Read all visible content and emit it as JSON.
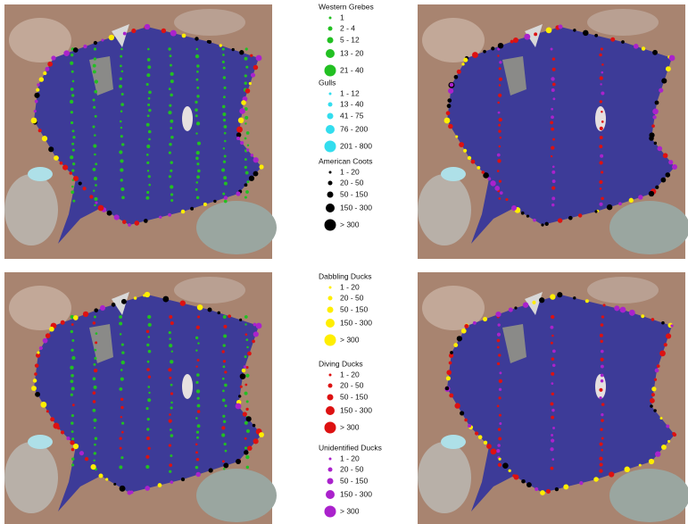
{
  "legend": {
    "groups": [
      {
        "title": "Western Grebes",
        "color": "#22c022",
        "items": [
          "1",
          "2 - 4",
          "5 - 12",
          "13 - 20",
          "21 - 40"
        ]
      },
      {
        "title": "Gulls",
        "color": "#33ddee",
        "items": [
          "1 - 12",
          "13 - 40",
          "41 - 75",
          "76 - 200",
          "201 - 800"
        ]
      },
      {
        "title": "American Coots",
        "color": "#000000",
        "items": [
          "1 - 20",
          "20 - 50",
          "50 - 150",
          "150 - 300",
          "> 300"
        ]
      },
      {
        "title": "Dabbling Ducks",
        "color": "#ffee00",
        "items": [
          "1 - 20",
          "20 - 50",
          "50 - 150",
          "150 - 300",
          "> 300"
        ]
      },
      {
        "title": "Diving Ducks",
        "color": "#dd1111",
        "items": [
          "1 - 20",
          "20 - 50",
          "50 - 150",
          "150 - 300",
          "> 300"
        ]
      },
      {
        "title": "Unidentified Ducks",
        "color": "#aa22cc",
        "items": [
          "1 - 20",
          "20 - 50",
          "50 - 150",
          "150 - 300",
          "> 300"
        ]
      }
    ]
  }
}
